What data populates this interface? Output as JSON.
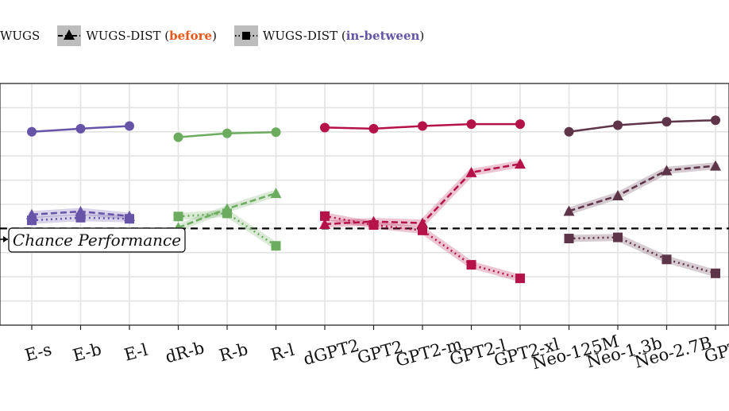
{
  "legend": {
    "wugs": "WUGS",
    "dist_before_prefix": "WUGS-DIST (",
    "dist_before_word": "before",
    "dist_before_suffix": ")",
    "dist_between_prefix": "WUGS-DIST (",
    "dist_between_word": "in-between",
    "dist_between_suffix": ")",
    "colors": {
      "before_word": "#e8581b",
      "between_word": "#6654a8"
    }
  },
  "chart_data": {
    "type": "line",
    "title": "",
    "xlabel": "",
    "ylabel": "",
    "ylim": [
      0.375,
      1.0
    ],
    "grid": true,
    "legend_position": "top",
    "chance_level": 0.625,
    "annotation": "Chance Performance",
    "categories": [
      "E-s",
      "E-b",
      "E-l",
      "dR-b",
      "R-b",
      "R-l",
      "dGPT2",
      "GPT2",
      "GPT2-m",
      "GPT2-l",
      "GPT2-xl",
      "Neo-125M",
      "Neo-1.3b",
      "Neo-2.7B",
      "GPT"
    ],
    "groups": [
      {
        "color": "#6654a8",
        "categories": [
          "E-s",
          "E-b",
          "E-l"
        ],
        "series": [
          {
            "name": "WUGS",
            "values": [
              0.875,
              0.883,
              0.89
            ]
          },
          {
            "name": "WUGS-DIST (before)",
            "values": [
              0.661,
              0.669,
              0.657
            ]
          },
          {
            "name": "WUGS-DIST (in-between)",
            "values": [
              0.646,
              0.653,
              0.65
            ]
          }
        ]
      },
      {
        "color": "#6bac5e",
        "categories": [
          "dR-b",
          "R-b",
          "R-l"
        ],
        "series": [
          {
            "name": "WUGS",
            "values": [
              0.861,
              0.871,
              0.874
            ]
          },
          {
            "name": "WUGS-DIST (before)",
            "values": [
              0.627,
              0.676,
              0.716
            ]
          },
          {
            "name": "WUGS-DIST (in-between)",
            "values": [
              0.656,
              0.664,
              0.58
            ]
          }
        ]
      },
      {
        "color": "#b5124a",
        "categories": [
          "dGPT2",
          "GPT2",
          "GPT2-m",
          "GPT2-l",
          "GPT2-xl"
        ],
        "series": [
          {
            "name": "WUGS",
            "values": [
              0.886,
              0.883,
              0.89,
              0.895,
              0.895
            ]
          },
          {
            "name": "WUGS-DIST (before)",
            "values": [
              0.636,
              0.643,
              0.639,
              0.77,
              0.792
            ]
          },
          {
            "name": "WUGS-DIST (in-between)",
            "values": [
              0.657,
              0.634,
              0.62,
              0.531,
              0.496
            ]
          }
        ]
      },
      {
        "color": "#5e3448",
        "categories": [
          "Neo-125M",
          "Neo-1.3b",
          "Neo-2.7B",
          "GPT"
        ],
        "series": [
          {
            "name": "WUGS",
            "values": [
              0.875,
              0.892,
              0.901,
              0.905
            ]
          },
          {
            "name": "WUGS-DIST (before)",
            "values": [
              0.67,
              0.71,
              0.775,
              0.787
            ]
          },
          {
            "name": "WUGS-DIST (in-between)",
            "values": [
              0.599,
              0.602,
              0.545,
              0.509
            ]
          }
        ]
      }
    ]
  }
}
